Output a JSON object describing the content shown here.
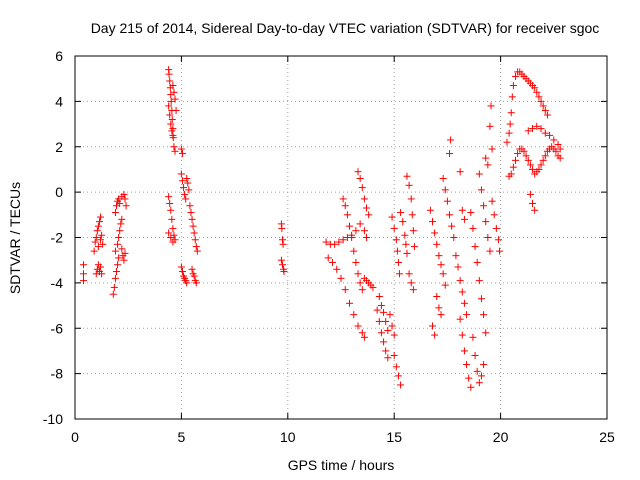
{
  "chart_data": {
    "type": "scatter",
    "title": "Day 215 of 2014, Sidereal Day-to-day VTEC variation (SDTVAR) for receiver sgoc",
    "xlabel": "GPS time / hours",
    "ylabel": "SDTVAR / TECUs",
    "xlim": [
      0,
      25
    ],
    "ylim": [
      -10,
      6
    ],
    "xticks": [
      0,
      5,
      10,
      15,
      20,
      25
    ],
    "yticks": [
      -10,
      -8,
      -6,
      -4,
      -2,
      0,
      2,
      4,
      6
    ],
    "xtick_labels": [
      "0",
      "5",
      "10",
      "15",
      "20",
      "25"
    ],
    "ytick_labels": [
      "-10",
      "-8",
      "-6",
      "-4",
      "-2",
      "0",
      "2",
      "4",
      "6"
    ],
    "grid": true,
    "marker": "+",
    "color": "#ff0000",
    "series": [
      {
        "name": "sgoc",
        "points": [
          [
            0.4,
            -3.2
          ],
          [
            0.4,
            -3.6
          ],
          [
            0.4,
            -3.9
          ],
          [
            0.9,
            -2.6
          ],
          [
            0.95,
            -2.2
          ],
          [
            1.0,
            -2.0
          ],
          [
            1.05,
            -1.7
          ],
          [
            1.1,
            -1.5
          ],
          [
            1.15,
            -1.3
          ],
          [
            1.2,
            -1.1
          ],
          [
            1.0,
            -3.6
          ],
          [
            1.05,
            -3.4
          ],
          [
            1.1,
            -3.2
          ],
          [
            1.15,
            -3.5
          ],
          [
            1.2,
            -3.3
          ],
          [
            1.25,
            -3.6
          ],
          [
            1.1,
            -2.4
          ],
          [
            1.2,
            -2.1
          ],
          [
            1.25,
            -1.9
          ],
          [
            1.3,
            -2.3
          ],
          [
            1.8,
            -4.5
          ],
          [
            1.85,
            -4.2
          ],
          [
            1.9,
            -3.8
          ],
          [
            1.95,
            -3.5
          ],
          [
            2.0,
            -3.2
          ],
          [
            2.05,
            -2.9
          ],
          [
            1.9,
            -2.6
          ],
          [
            2.0,
            -2.3
          ],
          [
            2.05,
            -2.0
          ],
          [
            2.1,
            -1.7
          ],
          [
            2.15,
            -1.4
          ],
          [
            2.2,
            -1.2
          ],
          [
            1.9,
            -0.9
          ],
          [
            1.95,
            -0.6
          ],
          [
            2.0,
            -0.4
          ],
          [
            2.05,
            -0.3
          ],
          [
            2.1,
            -0.5
          ],
          [
            2.2,
            -0.2
          ],
          [
            2.3,
            -0.1
          ],
          [
            2.35,
            -0.3
          ],
          [
            2.4,
            -0.6
          ],
          [
            2.2,
            -2.5
          ],
          [
            2.25,
            -2.8
          ],
          [
            2.3,
            -3.0
          ],
          [
            2.35,
            -2.7
          ],
          [
            4.4,
            5.4
          ],
          [
            4.42,
            5.2
          ],
          [
            4.45,
            4.9
          ],
          [
            4.48,
            4.6
          ],
          [
            4.5,
            4.3
          ],
          [
            4.52,
            4.0
          ],
          [
            4.55,
            3.6
          ],
          [
            4.57,
            3.2
          ],
          [
            4.6,
            2.8
          ],
          [
            4.62,
            2.4
          ],
          [
            4.65,
            2.0
          ],
          [
            4.7,
            1.8
          ],
          [
            4.4,
            3.8
          ],
          [
            4.45,
            3.4
          ],
          [
            4.5,
            3.0
          ],
          [
            4.55,
            2.7
          ],
          [
            4.6,
            2.5
          ],
          [
            4.6,
            4.7
          ],
          [
            4.65,
            4.4
          ],
          [
            4.7,
            4.1
          ],
          [
            4.75,
            3.6
          ],
          [
            4.4,
            -0.2
          ],
          [
            4.45,
            -0.5
          ],
          [
            4.5,
            -0.8
          ],
          [
            4.55,
            -1.2
          ],
          [
            4.6,
            -1.6
          ],
          [
            4.65,
            -1.9
          ],
          [
            4.7,
            -2.1
          ],
          [
            4.4,
            -1.8
          ],
          [
            4.5,
            -2.0
          ],
          [
            4.6,
            -2.2
          ],
          [
            5.0,
            1.9
          ],
          [
            5.05,
            1.7
          ],
          [
            5.0,
            0.8
          ],
          [
            5.05,
            0.5
          ],
          [
            5.1,
            0.2
          ],
          [
            5.15,
            -0.1
          ],
          [
            5.2,
            -0.3
          ],
          [
            5.25,
            0.6
          ],
          [
            5.3,
            0.4
          ],
          [
            5.35,
            0.1
          ],
          [
            5.0,
            -3.3
          ],
          [
            5.05,
            -3.5
          ],
          [
            5.1,
            -3.7
          ],
          [
            5.15,
            -3.8
          ],
          [
            5.2,
            -3.9
          ],
          [
            5.25,
            -4.0
          ],
          [
            5.4,
            -0.6
          ],
          [
            5.45,
            -0.9
          ],
          [
            5.5,
            -1.2
          ],
          [
            5.55,
            -1.5
          ],
          [
            5.6,
            -1.8
          ],
          [
            5.65,
            -2.1
          ],
          [
            5.7,
            -2.4
          ],
          [
            5.75,
            -2.6
          ],
          [
            5.5,
            -3.4
          ],
          [
            5.55,
            -3.6
          ],
          [
            5.6,
            -3.7
          ],
          [
            5.65,
            -3.9
          ],
          [
            5.7,
            -4.0
          ],
          [
            9.7,
            -1.4
          ],
          [
            9.72,
            -1.6
          ],
          [
            9.75,
            -2.1
          ],
          [
            9.78,
            -2.3
          ],
          [
            9.7,
            -3.0
          ],
          [
            9.75,
            -3.2
          ],
          [
            9.8,
            -3.4
          ],
          [
            9.82,
            -3.5
          ],
          [
            11.8,
            -2.2
          ],
          [
            12.0,
            -2.3
          ],
          [
            12.2,
            -2.3
          ],
          [
            12.4,
            -2.2
          ],
          [
            12.6,
            -2.1
          ],
          [
            12.8,
            -2.0
          ],
          [
            13.0,
            -1.9
          ],
          [
            13.2,
            -1.7
          ],
          [
            13.4,
            -1.4
          ],
          [
            13.6,
            -1.7
          ],
          [
            13.7,
            -2.0
          ],
          [
            11.9,
            -2.9
          ],
          [
            12.1,
            -3.1
          ],
          [
            12.3,
            -3.4
          ],
          [
            12.5,
            -3.8
          ],
          [
            12.7,
            -4.3
          ],
          [
            12.9,
            -4.9
          ],
          [
            13.1,
            -5.4
          ],
          [
            13.3,
            -5.9
          ],
          [
            13.5,
            -6.2
          ],
          [
            13.6,
            -6.4
          ],
          [
            12.6,
            -0.3
          ],
          [
            12.7,
            -0.6
          ],
          [
            12.8,
            -1.0
          ],
          [
            12.9,
            -1.5
          ],
          [
            13.0,
            -2.0
          ],
          [
            13.1,
            -2.6
          ],
          [
            13.2,
            -3.1
          ],
          [
            13.3,
            -3.6
          ],
          [
            13.4,
            -4.0
          ],
          [
            13.5,
            -4.3
          ],
          [
            13.6,
            -3.8
          ],
          [
            13.7,
            -3.9
          ],
          [
            13.8,
            -4.0
          ],
          [
            13.9,
            -4.1
          ],
          [
            14.0,
            -4.2
          ],
          [
            13.3,
            0.9
          ],
          [
            13.4,
            0.6
          ],
          [
            13.5,
            0.2
          ],
          [
            13.6,
            -0.3
          ],
          [
            13.7,
            -0.7
          ],
          [
            13.8,
            -1.0
          ],
          [
            14.2,
            -5.2
          ],
          [
            14.3,
            -5.7
          ],
          [
            14.4,
            -6.2
          ],
          [
            14.5,
            -6.6
          ],
          [
            14.6,
            -7.0
          ],
          [
            14.7,
            -7.3
          ],
          [
            14.3,
            -4.6
          ],
          [
            14.4,
            -5.0
          ],
          [
            14.5,
            -5.3
          ],
          [
            14.6,
            -5.7
          ],
          [
            14.7,
            -6.1
          ],
          [
            14.8,
            -5.4
          ],
          [
            14.9,
            -5.9
          ],
          [
            15.0,
            -6.3
          ],
          [
            15.0,
            -7.2
          ],
          [
            15.1,
            -7.7
          ],
          [
            15.2,
            -8.1
          ],
          [
            15.3,
            -8.5
          ],
          [
            14.9,
            -1.1
          ],
          [
            15.0,
            -1.6
          ],
          [
            15.1,
            -2.1
          ],
          [
            15.15,
            -2.6
          ],
          [
            15.2,
            -3.1
          ],
          [
            15.25,
            -3.6
          ],
          [
            15.3,
            -0.9
          ],
          [
            15.4,
            -1.3
          ],
          [
            15.5,
            -1.9
          ],
          [
            15.55,
            -2.3
          ],
          [
            15.6,
            -2.7
          ],
          [
            15.6,
            0.7
          ],
          [
            15.7,
            0.3
          ],
          [
            15.8,
            -0.3
          ],
          [
            15.85,
            -1.0
          ],
          [
            15.9,
            -1.7
          ],
          [
            15.95,
            -2.4
          ],
          [
            15.7,
            -3.6
          ],
          [
            15.8,
            -4.0
          ],
          [
            15.9,
            -4.3
          ],
          [
            16.7,
            -0.8
          ],
          [
            16.8,
            -1.3
          ],
          [
            16.9,
            -1.8
          ],
          [
            17.0,
            -2.3
          ],
          [
            17.1,
            -2.8
          ],
          [
            17.2,
            -3.2
          ],
          [
            17.3,
            -3.6
          ],
          [
            17.4,
            -4.1
          ],
          [
            17.0,
            -4.6
          ],
          [
            17.1,
            -5.1
          ],
          [
            17.2,
            -5.4
          ],
          [
            16.8,
            -5.9
          ],
          [
            16.9,
            -6.3
          ],
          [
            17.3,
            0.6
          ],
          [
            17.4,
            0.1
          ],
          [
            17.5,
            -0.4
          ],
          [
            17.6,
            -1.0
          ],
          [
            17.7,
            -1.5
          ],
          [
            17.8,
            -2.0
          ],
          [
            17.6,
            1.7
          ],
          [
            17.65,
            2.3
          ],
          [
            17.9,
            -2.8
          ],
          [
            18.0,
            -3.3
          ],
          [
            18.1,
            -3.9
          ],
          [
            18.2,
            -4.4
          ],
          [
            18.3,
            -4.9
          ],
          [
            18.4,
            -5.4
          ],
          [
            18.1,
            -5.6
          ],
          [
            18.2,
            -6.3
          ],
          [
            18.3,
            -7.0
          ],
          [
            18.4,
            -7.6
          ],
          [
            18.5,
            -8.2
          ],
          [
            18.6,
            -8.6
          ],
          [
            18.6,
            -0.9
          ],
          [
            18.7,
            -1.6
          ],
          [
            18.8,
            -2.4
          ],
          [
            18.9,
            -3.1
          ],
          [
            19.0,
            -3.9
          ],
          [
            19.1,
            -4.7
          ],
          [
            19.2,
            -5.4
          ],
          [
            19.3,
            -6.2
          ],
          [
            18.7,
            -6.4
          ],
          [
            18.8,
            -7.2
          ],
          [
            18.9,
            -7.9
          ],
          [
            19.0,
            -8.4
          ],
          [
            19.1,
            -8.1
          ],
          [
            19.2,
            -7.6
          ],
          [
            19.0,
            0.8
          ],
          [
            19.1,
            0.1
          ],
          [
            19.2,
            -0.6
          ],
          [
            19.3,
            -1.3
          ],
          [
            19.4,
            -2.0
          ],
          [
            19.5,
            -2.6
          ],
          [
            19.3,
            1.5
          ],
          [
            19.4,
            1.2
          ],
          [
            19.5,
            2.9
          ],
          [
            19.55,
            3.8
          ],
          [
            19.6,
            1.9
          ],
          [
            19.6,
            -0.4
          ],
          [
            19.7,
            -1.0
          ],
          [
            19.8,
            -1.6
          ],
          [
            19.9,
            -2.1
          ],
          [
            19.95,
            -2.6
          ],
          [
            18.2,
            -0.8
          ],
          [
            18.3,
            -1.2
          ],
          [
            18.1,
            0.9
          ],
          [
            20.3,
            2.2
          ],
          [
            20.4,
            2.6
          ],
          [
            20.45,
            3.0
          ],
          [
            20.5,
            3.5
          ],
          [
            20.55,
            4.2
          ],
          [
            20.6,
            4.7
          ],
          [
            20.7,
            5.1
          ],
          [
            20.8,
            5.3
          ],
          [
            20.9,
            5.3
          ],
          [
            21.0,
            5.2
          ],
          [
            21.1,
            5.1
          ],
          [
            21.2,
            5.0
          ],
          [
            21.3,
            4.9
          ],
          [
            21.4,
            4.8
          ],
          [
            21.5,
            4.7
          ],
          [
            21.6,
            4.6
          ],
          [
            21.7,
            4.4
          ],
          [
            21.8,
            4.2
          ],
          [
            21.9,
            4.0
          ],
          [
            22.0,
            3.8
          ],
          [
            22.1,
            3.6
          ],
          [
            22.2,
            3.4
          ],
          [
            20.4,
            0.7
          ],
          [
            20.5,
            0.8
          ],
          [
            20.6,
            1.1
          ],
          [
            20.7,
            1.4
          ],
          [
            20.8,
            1.7
          ],
          [
            20.9,
            1.9
          ],
          [
            21.0,
            1.9
          ],
          [
            21.1,
            1.8
          ],
          [
            21.2,
            1.6
          ],
          [
            21.3,
            1.4
          ],
          [
            21.4,
            1.2
          ],
          [
            21.5,
            1.0
          ],
          [
            21.6,
            0.8
          ],
          [
            21.7,
            0.9
          ],
          [
            21.8,
            1.0
          ],
          [
            21.9,
            1.2
          ],
          [
            22.0,
            1.4
          ],
          [
            22.1,
            1.6
          ],
          [
            22.2,
            1.8
          ],
          [
            22.3,
            1.9
          ],
          [
            22.4,
            2.0
          ],
          [
            22.5,
            1.9
          ],
          [
            22.6,
            1.8
          ],
          [
            22.7,
            1.6
          ],
          [
            22.8,
            1.5
          ],
          [
            21.3,
            2.7
          ],
          [
            21.5,
            2.8
          ],
          [
            21.7,
            2.9
          ],
          [
            21.9,
            2.8
          ],
          [
            22.1,
            2.6
          ],
          [
            22.3,
            2.5
          ],
          [
            22.5,
            2.3
          ],
          [
            22.7,
            2.1
          ],
          [
            22.8,
            1.9
          ],
          [
            21.4,
            -0.1
          ],
          [
            21.5,
            -0.5
          ],
          [
            21.6,
            -0.8
          ]
        ]
      }
    ]
  }
}
